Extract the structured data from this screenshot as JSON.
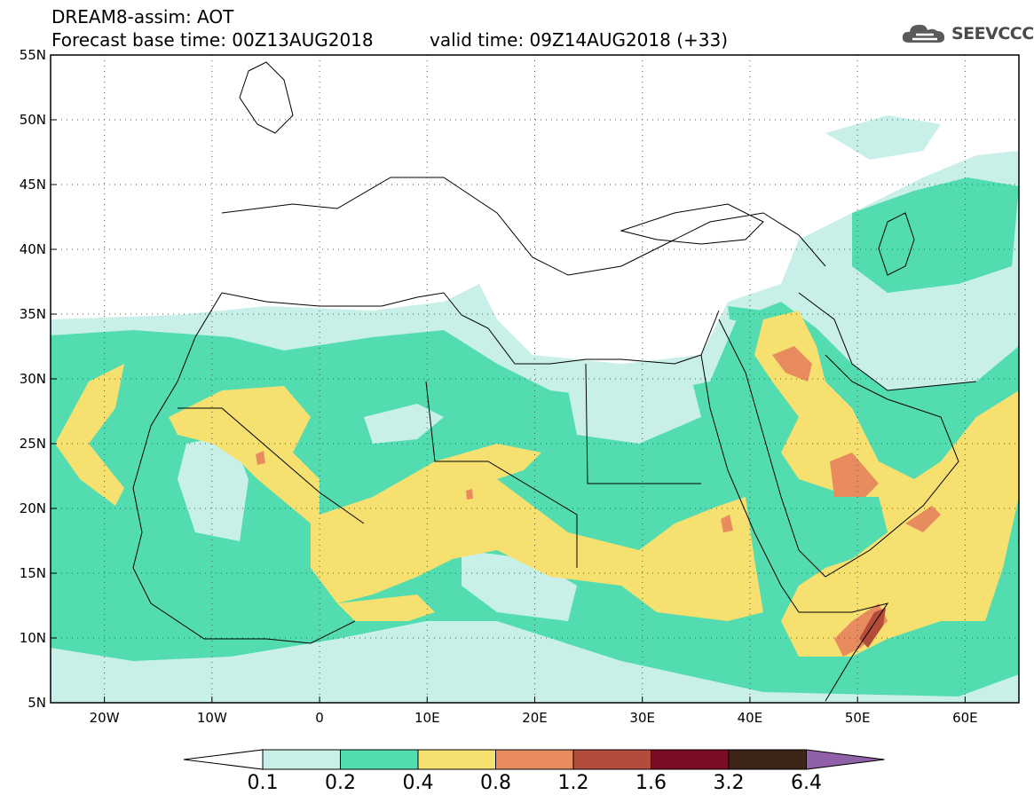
{
  "header": {
    "line1": "DREAM8-assim: AOT",
    "line2": "Forecast base time: 00Z13AUG2018",
    "valid": "valid time: 09Z14AUG2018 (+33)",
    "logo_text": "SEEVCCC"
  },
  "axes": {
    "lat_labels": [
      "55N",
      "50N",
      "45N",
      "40N",
      "35N",
      "30N",
      "25N",
      "20N",
      "15N",
      "10N",
      "5N"
    ],
    "lon_labels": [
      "20W",
      "10W",
      "0",
      "10E",
      "20E",
      "30E",
      "40E",
      "50E",
      "60E"
    ]
  },
  "legend": {
    "levels": [
      "0.1",
      "0.2",
      "0.4",
      "0.8",
      "1.2",
      "1.6",
      "3.2",
      "6.4"
    ],
    "colors": [
      "#c8f0e8",
      "#52dcb0",
      "#f5e070",
      "#e88c60",
      "#b44c3c",
      "#7a0c24",
      "#3c2418",
      "#9060a8"
    ]
  }
}
